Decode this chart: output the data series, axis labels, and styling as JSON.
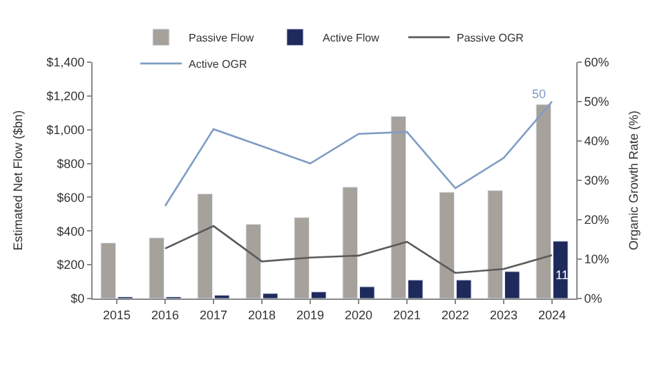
{
  "chart_data": {
    "type": "bar",
    "xlabel": null,
    "ylabel": "Estimated Net Flow ($bn)",
    "y2label": "Organic Growth Rate (%)",
    "categories": [
      "2015",
      "2016",
      "2017",
      "2018",
      "2019",
      "2020",
      "2021",
      "2022",
      "2023",
      "2024"
    ],
    "series": [
      {
        "name": "Passive Flow",
        "color": "#a7a19c",
        "values": [
          330,
          360,
          620,
          440,
          480,
          660,
          1080,
          630,
          640,
          1150
        ]
      },
      {
        "name": "Active Flow",
        "color": "#1f2a5c",
        "values": [
          10,
          10,
          20,
          30,
          40,
          70,
          110,
          110,
          160,
          340
        ]
      },
      {
        "name": "Passive OGR",
        "type": "line",
        "axis": "y2",
        "color": "#5a5a5a",
        "values": [
          null,
          12.7,
          18.4,
          9.4,
          10.4,
          10.9,
          14.4,
          6.5,
          7.5,
          11
        ],
        "value_labels": [
          null,
          null,
          null,
          null,
          null,
          null,
          null,
          null,
          null,
          "11"
        ]
      },
      {
        "name": "Active OGR",
        "type": "line",
        "axis": "y2",
        "color": "#7f9cc4",
        "values": [
          null,
          23.5,
          43,
          38.7,
          34.3,
          41.8,
          42.3,
          28,
          35.7,
          50
        ],
        "value_labels": [
          null,
          null,
          null,
          null,
          null,
          null,
          null,
          null,
          null,
          "50"
        ]
      }
    ],
    "ylim": [
      0,
      1400
    ],
    "yticks": [
      {
        "value": 0,
        "label": "$0"
      },
      {
        "value": 200,
        "label": "$200"
      },
      {
        "value": 400,
        "label": "$400"
      },
      {
        "value": 600,
        "label": "$600"
      },
      {
        "value": 800,
        "label": "$800"
      },
      {
        "value": 1000,
        "label": "$1,000"
      },
      {
        "value": 1200,
        "label": "$1,200"
      },
      {
        "value": 1400,
        "label": "$1,400"
      }
    ],
    "y2lim": [
      0,
      60
    ],
    "y2ticks": [
      {
        "value": 0,
        "label": "0%"
      },
      {
        "value": 10,
        "label": "10%"
      },
      {
        "value": 20,
        "label": "20%"
      },
      {
        "value": 30,
        "label": "30%"
      },
      {
        "value": 40,
        "label": "40%"
      },
      {
        "value": 50,
        "label": "50%"
      },
      {
        "value": 60,
        "label": "60%"
      }
    ],
    "legend": "top",
    "marker": "none"
  }
}
